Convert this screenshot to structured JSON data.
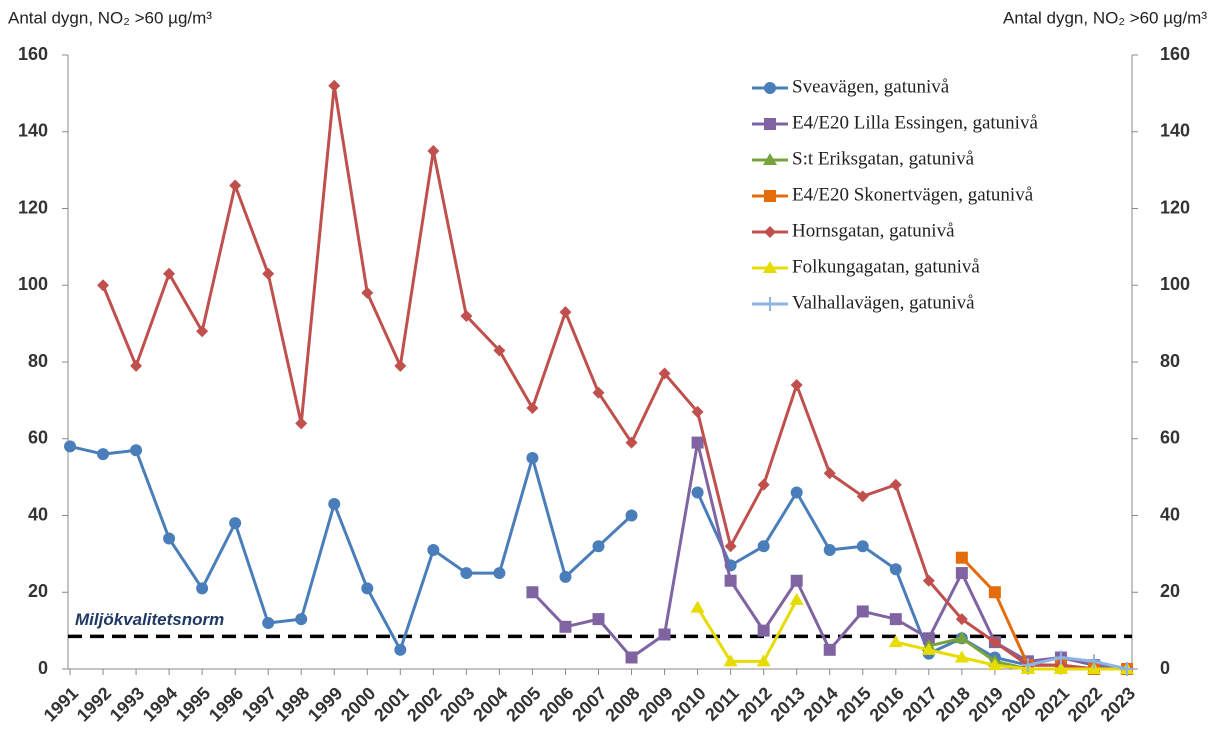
{
  "chart_data": {
    "type": "line",
    "y_label": "Antal dygn, NO₂ >60 µg/m³",
    "y2_label": "Antal dygn, NO₂ >60 µg/m³",
    "categories": [
      "1991",
      "1992",
      "1993",
      "1994",
      "1995",
      "1996",
      "1997",
      "1998",
      "1999",
      "2000",
      "2001",
      "2002",
      "2003",
      "2004",
      "2005",
      "2006",
      "2007",
      "2008",
      "2009",
      "2010",
      "2011",
      "2012",
      "2013",
      "2014",
      "2015",
      "2016",
      "2017",
      "2018",
      "2019",
      "2020",
      "2021",
      "2022",
      "2023"
    ],
    "ylim": [
      0,
      160
    ],
    "yticks": [
      0,
      20,
      40,
      60,
      80,
      100,
      120,
      140,
      160
    ],
    "y2lim": [
      0,
      160
    ],
    "y2ticks": [
      0,
      20,
      40,
      60,
      80,
      100,
      120,
      140,
      160
    ],
    "grid": false,
    "legend": "top-right",
    "reference_line": {
      "label": "Miljökvalitetsnorm",
      "value": 8.5,
      "color": "#000000"
    },
    "series": [
      {
        "name": "Sveavägen, gatunivå",
        "color": "#4a7ebb",
        "marker": "circle",
        "values": [
          58,
          56,
          57,
          34,
          21,
          38,
          12,
          13,
          43,
          21,
          5,
          31,
          25,
          25,
          55,
          24,
          32,
          40,
          null,
          46,
          27,
          32,
          46,
          31,
          32,
          26,
          4,
          8,
          3,
          1,
          1,
          0,
          0
        ]
      },
      {
        "name": "E4/E20 Lilla Essingen, gatunivå",
        "color": "#8064a2",
        "marker": "square",
        "values": [
          null,
          null,
          null,
          null,
          null,
          null,
          null,
          null,
          null,
          null,
          null,
          null,
          null,
          null,
          20,
          11,
          13,
          3,
          9,
          59,
          23,
          10,
          23,
          5,
          15,
          13,
          8,
          25,
          7,
          2,
          3,
          1,
          0
        ]
      },
      {
        "name": "S:t Eriksgatan, gatunivå",
        "color": "#77a33a",
        "marker": "triangle",
        "values": [
          null,
          null,
          null,
          null,
          null,
          null,
          null,
          null,
          null,
          null,
          null,
          null,
          null,
          null,
          null,
          null,
          null,
          null,
          null,
          null,
          null,
          null,
          null,
          null,
          null,
          null,
          6,
          8,
          2,
          0,
          0,
          0,
          0
        ]
      },
      {
        "name": "E4/E20 Skonertvägen, gatunivå",
        "color": "#e46c0a",
        "marker": "square",
        "values": [
          null,
          null,
          null,
          null,
          null,
          null,
          null,
          null,
          null,
          null,
          null,
          null,
          null,
          null,
          null,
          null,
          null,
          null,
          null,
          null,
          null,
          null,
          null,
          null,
          null,
          null,
          null,
          29,
          20,
          1,
          1,
          0,
          0
        ]
      },
      {
        "name": "Hornsgatan, gatunivå",
        "color": "#c0504d",
        "marker": "diamond",
        "values": [
          null,
          100,
          79,
          103,
          88,
          126,
          103,
          64,
          152,
          98,
          79,
          135,
          92,
          83,
          68,
          93,
          72,
          59,
          77,
          67,
          32,
          48,
          74,
          51,
          45,
          48,
          23,
          13,
          7,
          1,
          1,
          0,
          0
        ]
      },
      {
        "name": "Folkungagatan, gatunivå",
        "color": "#e6dc00",
        "marker": "triangle",
        "values": [
          null,
          null,
          null,
          null,
          null,
          null,
          null,
          null,
          null,
          null,
          null,
          null,
          null,
          null,
          null,
          null,
          null,
          null,
          null,
          16,
          2,
          2,
          18,
          null,
          null,
          7,
          5,
          3,
          1,
          0,
          0,
          0,
          0
        ]
      },
      {
        "name": "Valhallavägen, gatunivå",
        "color": "#8eb4e3",
        "marker": "plus",
        "values": [
          null,
          null,
          null,
          null,
          null,
          null,
          null,
          null,
          null,
          null,
          null,
          null,
          null,
          null,
          null,
          null,
          null,
          null,
          null,
          null,
          null,
          null,
          null,
          null,
          null,
          null,
          null,
          null,
          null,
          1,
          3,
          2,
          0
        ]
      }
    ]
  }
}
